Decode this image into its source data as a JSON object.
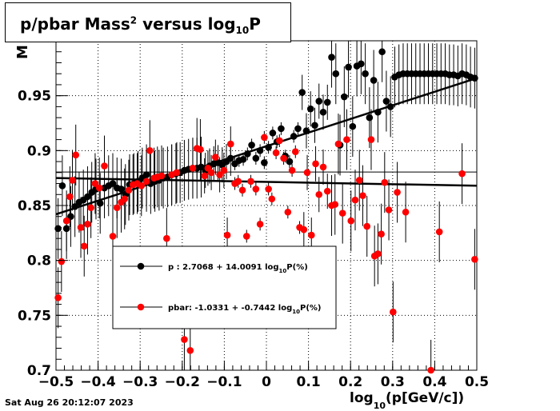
{
  "title": {
    "main": "p/pbar Mass",
    "sup": "2",
    "mid": " versus log",
    "sub": "10",
    "tail": "P"
  },
  "timestamp": "Sat Aug 26 20:12:07 2023",
  "xlabel": {
    "pre": "log",
    "sub": "10",
    "post": "(p[GeV/c])"
  },
  "ylabel": "M",
  "colors": {
    "p": "#000000",
    "pbar": "#ff0000"
  },
  "chart_data": {
    "type": "scatter",
    "xlim": [
      -0.5,
      0.5
    ],
    "ylim": [
      0.7,
      1.0
    ],
    "x_ticks": [
      "−0.5",
      "−0.4",
      "−0.3",
      "−0.2",
      "−0.1",
      "0",
      "0.1",
      "0.2",
      "0.3",
      "0.4",
      "0.5"
    ],
    "y_ticks": [
      "0.7",
      "0.75",
      "0.8",
      "0.85",
      "0.9",
      "0.95"
    ],
    "grid": true,
    "legend": {
      "placement": "lower-center",
      "entries": [
        {
          "series": "p",
          "label_pre": "p  : 2.7068 + 14.0091 log",
          "label_sub": "10",
          "label_post": "P(%)"
        },
        {
          "series": "pbar",
          "label_pre": "pbar: -1.0331 + -0.7442 log",
          "label_sub": "10",
          "label_post": "P(%)"
        }
      ]
    },
    "series": [
      {
        "name": "p",
        "color": "#000000",
        "fit_line": [
          [
            -0.5,
            0.842
          ],
          [
            0.5,
            0.966
          ]
        ],
        "points": [
          [
            -0.495,
            0.829
          ],
          [
            -0.485,
            0.868
          ],
          [
            -0.475,
            0.829
          ],
          [
            -0.465,
            0.84
          ],
          [
            -0.455,
            0.849
          ],
          [
            -0.445,
            0.853
          ],
          [
            -0.435,
            0.855
          ],
          [
            -0.425,
            0.858
          ],
          [
            -0.415,
            0.862
          ],
          [
            -0.405,
            0.865
          ],
          [
            -0.395,
            0.852
          ],
          [
            -0.385,
            0.866
          ],
          [
            -0.375,
            0.868
          ],
          [
            -0.365,
            0.87
          ],
          [
            -0.355,
            0.866
          ],
          [
            -0.345,
            0.865
          ],
          [
            -0.335,
            0.86
          ],
          [
            -0.325,
            0.869
          ],
          [
            -0.315,
            0.87
          ],
          [
            -0.305,
            0.872
          ],
          [
            -0.295,
            0.875
          ],
          [
            -0.285,
            0.878
          ],
          [
            -0.275,
            0.87
          ],
          [
            -0.265,
            0.872
          ],
          [
            -0.255,
            0.873
          ],
          [
            -0.245,
            0.875
          ],
          [
            -0.235,
            0.876
          ],
          [
            -0.225,
            0.878
          ],
          [
            -0.215,
            0.879
          ],
          [
            -0.205,
            0.88
          ],
          [
            -0.195,
            0.882
          ],
          [
            -0.185,
            0.883
          ],
          [
            -0.175,
            0.884
          ],
          [
            -0.165,
            0.884
          ],
          [
            -0.155,
            0.885
          ],
          [
            -0.145,
            0.882
          ],
          [
            -0.135,
            0.886
          ],
          [
            -0.125,
            0.888
          ],
          [
            -0.115,
            0.889
          ],
          [
            -0.105,
            0.887
          ],
          [
            -0.095,
            0.89
          ],
          [
            -0.085,
            0.893
          ],
          [
            -0.075,
            0.888
          ],
          [
            -0.065,
            0.891
          ],
          [
            -0.055,
            0.892
          ],
          [
            -0.045,
            0.897
          ],
          [
            -0.035,
            0.905
          ],
          [
            -0.025,
            0.893
          ],
          [
            -0.015,
            0.9
          ],
          [
            -0.005,
            0.889
          ],
          [
            0.005,
            0.903
          ],
          [
            0.015,
            0.916
          ],
          [
            0.025,
            0.908
          ],
          [
            0.035,
            0.92
          ],
          [
            0.045,
            0.895
          ],
          [
            0.055,
            0.89
          ],
          [
            0.065,
            0.913
          ],
          [
            0.075,
            0.92
          ],
          [
            0.085,
            0.953
          ],
          [
            0.095,
            0.918
          ],
          [
            0.105,
            0.938
          ],
          [
            0.115,
            0.923
          ],
          [
            0.125,
            0.945
          ],
          [
            0.135,
            0.935
          ],
          [
            0.145,
            0.944
          ],
          [
            0.155,
            0.985
          ],
          [
            0.165,
            0.97
          ],
          [
            0.175,
            0.905
          ],
          [
            0.185,
            0.949
          ],
          [
            0.195,
            0.976
          ],
          [
            0.205,
            0.922
          ],
          [
            0.215,
            0.977
          ],
          [
            0.225,
            0.979
          ],
          [
            0.235,
            0.97
          ],
          [
            0.245,
            0.93
          ],
          [
            0.255,
            0.964
          ],
          [
            0.265,
            0.935
          ],
          [
            0.275,
            0.99
          ],
          [
            0.285,
            0.945
          ],
          [
            0.295,
            0.94
          ],
          [
            0.305,
            0.967
          ],
          [
            0.315,
            0.969
          ],
          [
            0.325,
            0.97
          ],
          [
            0.335,
            0.97
          ],
          [
            0.345,
            0.97
          ],
          [
            0.355,
            0.97
          ],
          [
            0.365,
            0.97
          ],
          [
            0.375,
            0.97
          ],
          [
            0.385,
            0.97
          ],
          [
            0.395,
            0.97
          ],
          [
            0.405,
            0.97
          ],
          [
            0.415,
            0.97
          ],
          [
            0.425,
            0.97
          ],
          [
            0.435,
            0.969
          ],
          [
            0.445,
            0.969
          ],
          [
            0.455,
            0.968
          ],
          [
            0.465,
            0.97
          ],
          [
            0.475,
            0.969
          ],
          [
            0.485,
            0.967
          ],
          [
            0.495,
            0.966
          ]
        ]
      },
      {
        "name": "pbar",
        "color": "#ff0000",
        "fit_line": [
          [
            -0.5,
            0.875
          ],
          [
            0.5,
            0.868
          ]
        ],
        "points": [
          [
            -0.495,
            0.766
          ],
          [
            -0.487,
            0.799
          ],
          [
            -0.475,
            0.836
          ],
          [
            -0.467,
            0.858
          ],
          [
            -0.461,
            0.873
          ],
          [
            -0.453,
            0.896
          ],
          [
            -0.441,
            0.83
          ],
          [
            -0.433,
            0.813
          ],
          [
            -0.425,
            0.833
          ],
          [
            -0.417,
            0.848
          ],
          [
            -0.407,
            0.87
          ],
          [
            -0.397,
            0.866
          ],
          [
            -0.385,
            0.886
          ],
          [
            -0.365,
            0.822
          ],
          [
            -0.355,
            0.848
          ],
          [
            -0.345,
            0.853
          ],
          [
            -0.337,
            0.856
          ],
          [
            -0.327,
            0.864
          ],
          [
            -0.317,
            0.869
          ],
          [
            -0.307,
            0.87
          ],
          [
            -0.297,
            0.868
          ],
          [
            -0.285,
            0.872
          ],
          [
            -0.277,
            0.9
          ],
          [
            -0.267,
            0.875
          ],
          [
            -0.259,
            0.876
          ],
          [
            -0.249,
            0.877
          ],
          [
            -0.237,
            0.82
          ],
          [
            -0.225,
            0.878
          ],
          [
            -0.213,
            0.88
          ],
          [
            -0.195,
            0.728
          ],
          [
            -0.181,
            0.718
          ],
          [
            -0.175,
            0.884
          ],
          [
            -0.165,
            0.902
          ],
          [
            -0.157,
            0.901
          ],
          [
            -0.147,
            0.877
          ],
          [
            -0.139,
            0.884
          ],
          [
            -0.131,
            0.88
          ],
          [
            -0.121,
            0.894
          ],
          [
            -0.111,
            0.878
          ],
          [
            -0.101,
            0.882
          ],
          [
            -0.093,
            0.823
          ],
          [
            -0.085,
            0.906
          ],
          [
            -0.075,
            0.87
          ],
          [
            -0.067,
            0.872
          ],
          [
            -0.057,
            0.864
          ],
          [
            -0.047,
            0.822
          ],
          [
            -0.037,
            0.872
          ],
          [
            -0.025,
            0.865
          ],
          [
            -0.015,
            0.833
          ],
          [
            -0.005,
            0.912
          ],
          [
            0.005,
            0.865
          ],
          [
            0.013,
            0.856
          ],
          [
            0.023,
            0.898
          ],
          [
            0.031,
            0.909
          ],
          [
            0.041,
            0.893
          ],
          [
            0.051,
            0.844
          ],
          [
            0.061,
            0.882
          ],
          [
            0.069,
            0.899
          ],
          [
            0.079,
            0.83
          ],
          [
            0.089,
            0.828
          ],
          [
            0.097,
            0.88
          ],
          [
            0.107,
            0.823
          ],
          [
            0.117,
            0.888
          ],
          [
            0.125,
            0.86
          ],
          [
            0.135,
            0.885
          ],
          [
            0.145,
            0.863
          ],
          [
            0.155,
            0.85
          ],
          [
            0.163,
            0.851
          ],
          [
            0.171,
            0.906
          ],
          [
            0.181,
            0.843
          ],
          [
            0.191,
            0.91
          ],
          [
            0.201,
            0.836
          ],
          [
            0.211,
            0.855
          ],
          [
            0.221,
            0.873
          ],
          [
            0.229,
            0.859
          ],
          [
            0.239,
            0.831
          ],
          [
            0.249,
            0.91
          ],
          [
            0.257,
            0.804
          ],
          [
            0.265,
            0.806
          ],
          [
            0.273,
            0.824
          ],
          [
            0.281,
            0.871
          ],
          [
            0.291,
            0.846
          ],
          [
            0.301,
            0.753
          ],
          [
            0.311,
            0.862
          ],
          [
            0.331,
            0.844
          ],
          [
            0.391,
            0.7
          ],
          [
            0.411,
            0.826
          ],
          [
            0.465,
            0.879
          ],
          [
            0.495,
            0.801
          ]
        ]
      }
    ]
  }
}
